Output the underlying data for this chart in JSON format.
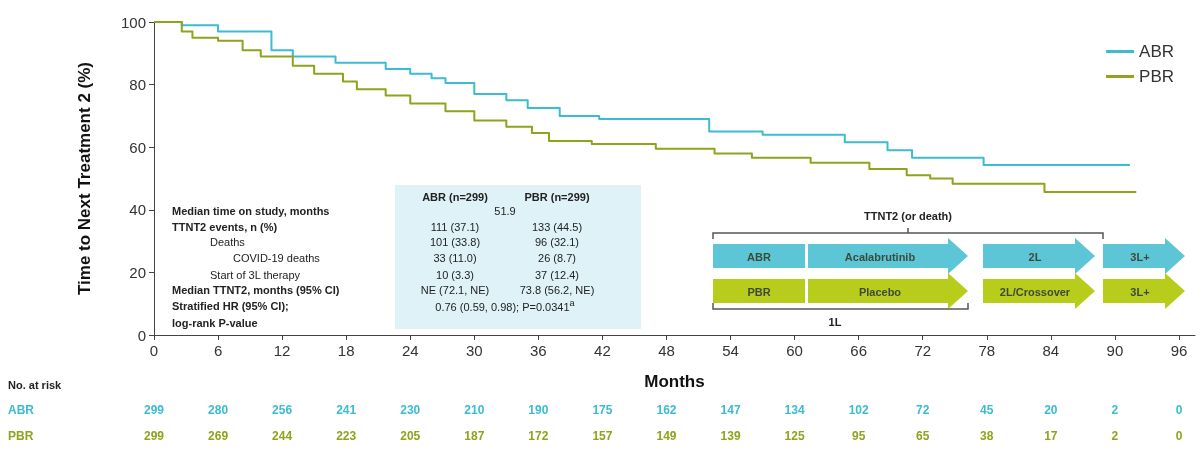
{
  "chart_data": {
    "type": "step",
    "xlabel": "Months",
    "ylabel": "Time to Next Treatment 2 (%)",
    "xlim": [
      0,
      97.5
    ],
    "xticks": [
      0,
      6,
      12,
      18,
      24,
      30,
      36,
      42,
      48,
      54,
      60,
      66,
      72,
      78,
      84,
      90,
      96
    ],
    "ylim": [
      0,
      100
    ],
    "yticks": [
      0,
      20,
      40,
      60,
      80,
      100
    ],
    "grid": false,
    "legend": "top right",
    "series": [
      {
        "name": "ABR",
        "color": "#3cbcd0",
        "x": [
          0,
          2.6,
          6,
          11,
          13,
          17,
          21.7,
          24,
          26,
          27.3,
          30,
          33,
          35,
          38,
          41.7,
          52,
          57,
          64.7,
          68.7,
          71,
          77.7,
          91.4
        ],
        "values": [
          100,
          99,
          97,
          91,
          89,
          87,
          85,
          83.5,
          82,
          80.5,
          77,
          75,
          72.5,
          70,
          69,
          65,
          64,
          61.6,
          59,
          56.6,
          54.3,
          54.3
        ]
      },
      {
        "name": "PBR",
        "color": "#8fa31c",
        "x": [
          0,
          2.6,
          3.6,
          6,
          8.3,
          10,
          13,
          15,
          17.7,
          19,
          21.7,
          24,
          27.3,
          30,
          33,
          35.4,
          37,
          41,
          47,
          52.5,
          56,
          61.5,
          67,
          70.5,
          72.7,
          74.8,
          83.4,
          92
        ],
        "values": [
          100,
          97,
          95,
          94,
          91,
          89,
          86,
          83.5,
          81,
          78.5,
          76.5,
          74,
          71.5,
          68.5,
          66.5,
          64.5,
          62,
          61,
          59.5,
          58,
          56.6,
          55,
          53,
          51,
          50,
          48.3,
          45.7,
          45.7
        ]
      }
    ],
    "annotations": [
      "Median time on study, months",
      "TTNT2 events, n (%)",
      "Deaths",
      "COVID-19 deaths",
      "Start of 3L therapy",
      "Median TTNT2, months (95% CI)",
      "Stratified HR (95% CI);",
      "log-rank P-value",
      "ABR (n=299)",
      "PBR (n=299)",
      "51.9",
      "111 (37.1)",
      "133 (44.5)",
      "101 (33.8)",
      "96 (32.1)",
      "33 (11.0)",
      "26 (8.7)",
      "10 (3.3)",
      "37 (12.4)",
      "NE (72.1, NE)",
      "73.8 (56.2, NE)",
      "0.76 (0.59, 0.98); P=0.0341$^{a}$",
      "TTNT2 (or death)",
      "ABR",
      "Acalabrutinib",
      "2L",
      "3L+",
      "PBR",
      "Placebo",
      "2L/Crossover",
      "3L+",
      "1L",
      "No. at risk",
      "ABR",
      "299",
      "280",
      "256",
      "241",
      "230",
      "210",
      "190",
      "175",
      "162",
      "147",
      "134",
      "102",
      "72",
      "45",
      "20",
      "2",
      "0",
      "PBR",
      "299",
      "269",
      "244",
      "223",
      "205",
      "187",
      "172",
      "157",
      "149",
      "139",
      "125",
      "95",
      "65",
      "38",
      "17",
      "2",
      "0"
    ]
  }
}
